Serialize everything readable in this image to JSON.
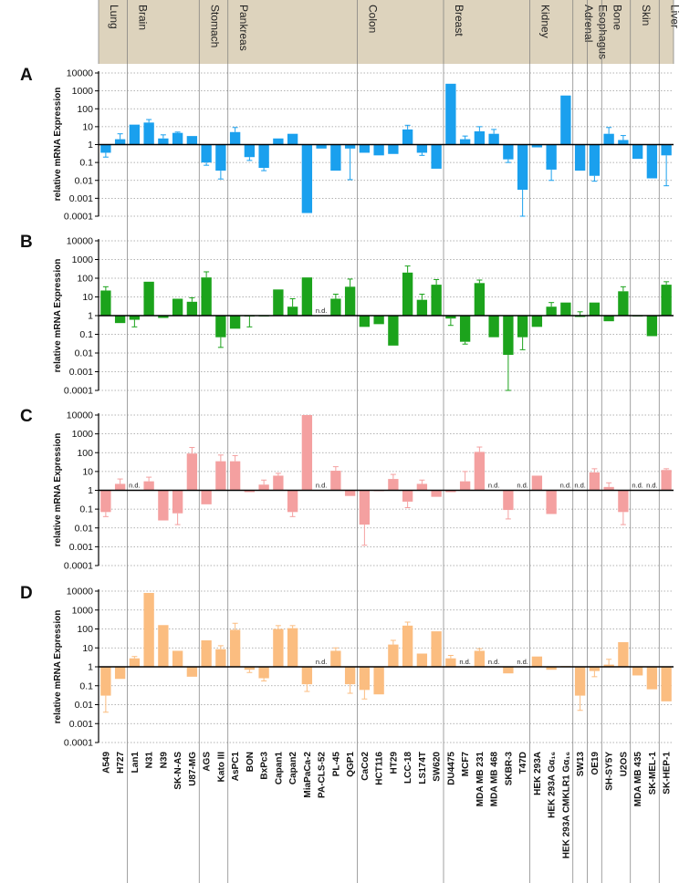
{
  "chart_data": {
    "type": "bar",
    "scale": "log10",
    "ylim": [
      0.0001,
      10000
    ],
    "ylabel": "relative mRNA Expression",
    "yticks": [
      "10000",
      "1000",
      "100",
      "10",
      "1",
      "0.1",
      "0.01",
      "0.001",
      "0.0001"
    ],
    "categories": [
      "A549",
      "H727",
      "Lan1",
      "N31",
      "N39",
      "SK-N-AS",
      "U87-MG",
      "AGS",
      "Kato III",
      "AsPC1",
      "BON",
      "BxPc3",
      "Capan1",
      "Capan2",
      "MiaPaCa-2",
      "PA-CLS-52",
      "PL-45",
      "QGP1",
      "CaCo2",
      "HCT116",
      "HT29",
      "LCC-18",
      "LS174T",
      "SW620",
      "DU4475",
      "MCF7",
      "MDA MB 231",
      "MDA MB 468",
      "SKBR-3",
      "T47D",
      "HEK 293A",
      "HEK 293A Gα₁₆",
      "HEK 293A CMKLR1 Gα₁₆",
      "SW13",
      "OE19",
      "SH-SY5Y",
      "U2OS",
      "MDA MB 435",
      "SK-MEL-1",
      "SK-HEP-1"
    ],
    "tissues": [
      {
        "name": "Lung",
        "count": 2
      },
      {
        "name": "Brain",
        "count": 5
      },
      {
        "name": "Stomach",
        "count": 2
      },
      {
        "name": "Pankreas",
        "count": 9
      },
      {
        "name": "Colon",
        "count": 6
      },
      {
        "name": "Breast",
        "count": 6
      },
      {
        "name": "Kidney",
        "count": 3
      },
      {
        "name": "Adrenal",
        "count": 1
      },
      {
        "name": "Esophagus",
        "count": 1
      },
      {
        "name": "Bone",
        "count": 2
      },
      {
        "name": "Skin",
        "count": 2
      },
      {
        "name": "Liver",
        "count": 1
      }
    ],
    "nd_label": "n.d.",
    "series": [
      {
        "name": "A",
        "color": "#1aa0ee",
        "values": [
          0.35,
          2,
          13,
          17,
          2.2,
          4.5,
          3,
          0.1,
          0.035,
          5,
          0.2,
          0.05,
          2.2,
          4,
          0.00015,
          0.6,
          0.035,
          0.6,
          0.35,
          0.25,
          0.3,
          7,
          0.35,
          0.045,
          2500,
          2,
          5.5,
          4,
          0.15,
          0.003,
          0.7,
          0.04,
          550,
          0.035,
          0.018,
          4,
          1.8,
          0.16,
          0.013,
          0.25
        ],
        "errors": [
          0.2,
          4,
          null,
          25,
          3.5,
          5,
          null,
          0.07,
          0.012,
          9,
          0.13,
          0.035,
          null,
          null,
          null,
          null,
          null,
          0.011,
          null,
          null,
          null,
          12,
          0.25,
          null,
          null,
          3,
          10,
          7,
          0.1,
          0.0001,
          null,
          0.01,
          null,
          null,
          0.009,
          9,
          3.2,
          null,
          null,
          0.005
        ]
      },
      {
        "name": "B",
        "color": "#1ca31c",
        "values": [
          22,
          0.4,
          0.6,
          65,
          0.75,
          8,
          5.5,
          110,
          0.07,
          0.2,
          0.9,
          0.9,
          25,
          3,
          110,
          null,
          8,
          35,
          0.25,
          0.35,
          0.025,
          200,
          7,
          45,
          0.7,
          0.04,
          55,
          0.07,
          0.008,
          0.07,
          0.25,
          3,
          5,
          0.85,
          5,
          0.5,
          20,
          0.9,
          0.08,
          45
        ],
        "errors": [
          35,
          null,
          0.25,
          null,
          null,
          null,
          9,
          220,
          0.02,
          null,
          0.25,
          null,
          null,
          8,
          null,
          null,
          14,
          90,
          null,
          null,
          null,
          450,
          14,
          85,
          0.3,
          0.03,
          80,
          null,
          0.0001,
          0.015,
          null,
          5,
          null,
          1.6,
          null,
          null,
          35,
          null,
          null,
          65
        ]
      },
      {
        "name": "C",
        "color": "#f4a0a0",
        "values": [
          0.07,
          2.2,
          null,
          3,
          0.025,
          0.06,
          90,
          0.18,
          35,
          35,
          0.8,
          2,
          6,
          0.07,
          10000,
          null,
          11,
          0.5,
          0.015,
          0.9,
          4,
          0.25,
          2.2,
          0.45,
          0.8,
          3,
          110,
          null,
          0.09,
          null,
          6,
          0.055,
          null,
          null,
          9,
          1.5,
          0.07,
          null,
          null,
          12
        ],
        "errors": [
          0.04,
          4,
          null,
          5,
          null,
          0.015,
          190,
          null,
          75,
          70,
          null,
          3.5,
          8,
          0.04,
          null,
          null,
          18,
          null,
          0.0012,
          null,
          7,
          0.12,
          3.5,
          null,
          null,
          10,
          200,
          null,
          0.03,
          null,
          null,
          null,
          null,
          null,
          14,
          2.5,
          0.015,
          null,
          null,
          14
        ]
      },
      {
        "name": "D",
        "color": "#fbbd80",
        "values": [
          0.03,
          0.23,
          2.8,
          8000,
          160,
          7,
          0.3,
          25,
          8.5,
          90,
          0.7,
          0.25,
          100,
          110,
          0.12,
          null,
          7,
          0.12,
          0.06,
          0.035,
          15,
          150,
          5,
          75,
          2.8,
          null,
          7,
          null,
          0.45,
          null,
          3.5,
          0.7,
          1.1,
          0.03,
          0.6,
          1.3,
          20,
          0.35,
          0.065,
          0.015
        ],
        "errors": [
          0.004,
          null,
          3.5,
          null,
          null,
          null,
          null,
          null,
          13,
          200,
          0.5,
          0.18,
          150,
          150,
          0.05,
          null,
          10,
          0.04,
          0.02,
          null,
          25,
          230,
          null,
          null,
          4,
          null,
          9,
          null,
          null,
          null,
          null,
          null,
          null,
          0.005,
          0.3,
          2.5,
          null,
          null,
          null,
          null
        ]
      }
    ]
  }
}
